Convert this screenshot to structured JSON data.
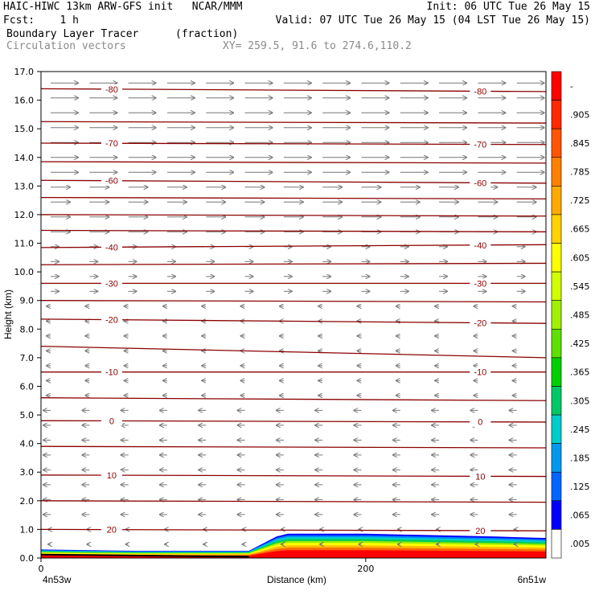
{
  "header": {
    "line1_left": "HAIC-HIWC 13km ARW-GFS init   NCAR/MMM",
    "line1_right": "Init: 06 UTC Tue 26 May 15",
    "line2_left": "Fcst:    1 h",
    "line2_right": "Valid: 07 UTC Tue 26 May 15 (04 LST Tue 26 May 15)",
    "line3_left": "Boundary Layer Tracer",
    "line3_units": "(fraction)",
    "line4_left": "Circulation vectors",
    "line4_xy": "XY= 259.5, 91.6 to 274.6,110.2"
  },
  "chart_data": {
    "type": "heatmap",
    "title": "Boundary Layer Tracer",
    "units": "(fraction)",
    "xlabel": "Distance (km)",
    "ylabel": "Height (km)",
    "x_range": [
      0,
      311
    ],
    "ylim": [
      0,
      17
    ],
    "x_ticks": [
      0,
      200
    ],
    "x_tick_labels": [
      "0",
      "200"
    ],
    "x_endpoint_labels": [
      "4n53w",
      "6n51w"
    ],
    "y_ticks": [
      0,
      1,
      2,
      3,
      4,
      5,
      6,
      7,
      8,
      9,
      10,
      11,
      12,
      13,
      14,
      15,
      16,
      17
    ],
    "y_tick_labels": [
      "0.0",
      "1.0",
      "2.0",
      "3.0",
      "4.0",
      "5.0",
      "6.0",
      "7.0",
      "8.0",
      "9.0",
      "10.0",
      "11.0",
      "12.0",
      "13.0",
      "14.0",
      "15.0",
      "16.0",
      "17.0"
    ],
    "colorbar": {
      "labels": [
        "-",
        ".905",
        ".845",
        ".785",
        ".725",
        ".665",
        ".605",
        ".545",
        ".485",
        ".425",
        ".365",
        ".305",
        ".245",
        ".185",
        ".125",
        ".065",
        ".005"
      ],
      "colors": [
        "#ff0000",
        "#ff2a00",
        "#ff5500",
        "#ff8000",
        "#ffaa00",
        "#ffd200",
        "#ffff00",
        "#d2ff00",
        "#a0f000",
        "#60e000",
        "#00d000",
        "#00c866",
        "#00cccc",
        "#0099ee",
        "#0066ff",
        "#0000ff",
        "#ffffff"
      ]
    },
    "contours": {
      "color": "#8b0000",
      "levels": [
        {
          "label": "-80",
          "y": [
            16.4,
            16.3
          ]
        },
        {
          "label": "",
          "y": [
            15.25,
            15.2
          ]
        },
        {
          "label": "-70",
          "y": [
            14.5,
            14.45
          ]
        },
        {
          "label": "",
          "y": [
            13.85,
            13.8
          ]
        },
        {
          "label": "-60",
          "y": [
            13.2,
            13.1
          ]
        },
        {
          "label": "",
          "y": [
            12.6,
            12.55
          ]
        },
        {
          "label": "",
          "y": [
            12.0,
            11.95
          ]
        },
        {
          "label": "",
          "y": [
            11.45,
            11.4
          ]
        },
        {
          "label": "-40",
          "y": [
            10.85,
            10.95
          ]
        },
        {
          "label": "",
          "y": [
            10.25,
            10.3
          ]
        },
        {
          "label": "-30",
          "y": [
            9.6,
            9.6
          ]
        },
        {
          "label": "",
          "y": [
            9.0,
            8.95
          ]
        },
        {
          "label": "-20",
          "y": [
            8.35,
            8.2
          ]
        },
        {
          "label": "",
          "y": [
            7.4,
            7.0
          ]
        },
        {
          "label": "-10",
          "y": [
            6.5,
            6.5
          ]
        },
        {
          "label": "",
          "y": [
            5.6,
            5.5
          ]
        },
        {
          "label": "0",
          "y": [
            4.8,
            4.75
          ]
        },
        {
          "label": "",
          "y": [
            3.9,
            3.85
          ]
        },
        {
          "label": "10",
          "y": [
            2.9,
            2.85
          ]
        },
        {
          "label": "",
          "y": [
            2.0,
            1.95
          ]
        },
        {
          "label": "20",
          "y": [
            1.0,
            0.95
          ]
        }
      ]
    },
    "tracer_region": {
      "x_km": [
        0,
        60,
        100,
        128,
        145,
        152,
        170,
        200,
        240,
        280,
        311
      ],
      "top_km": [
        0.3,
        0.25,
        0.25,
        0.25,
        0.75,
        0.85,
        0.85,
        0.85,
        0.8,
        0.75,
        0.7
      ],
      "core_value": 1.0
    }
  }
}
